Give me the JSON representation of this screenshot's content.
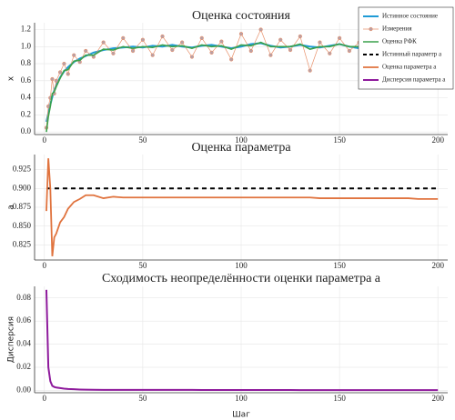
{
  "chart_data": [
    {
      "type": "line",
      "title": "Оценка состояния",
      "ylabel": "x",
      "x": [
        1,
        2,
        3,
        4,
        5,
        6,
        8,
        10,
        12,
        15,
        18,
        21,
        25,
        30,
        35,
        40,
        45,
        50,
        55,
        60,
        65,
        70,
        75,
        80,
        85,
        90,
        95,
        100,
        105,
        110,
        115,
        120,
        125,
        130,
        135,
        140,
        145,
        150,
        155,
        160,
        165,
        170,
        175,
        180,
        185,
        190,
        195,
        200
      ],
      "xlim": [
        -5,
        205
      ],
      "xticks": [
        0,
        50,
        100,
        150,
        200
      ],
      "ylim": [
        -0.03,
        1.28
      ],
      "yticks": [
        {
          "value": 0,
          "label": "0.0"
        },
        0.2,
        0.4,
        0.6,
        0.8,
        {
          "value": 1,
          "label": "1.0"
        },
        1.2
      ],
      "grid": true,
      "legend": "top-right",
      "series": [
        {
          "name": "Истинное состояние",
          "color": "#1f9bd6",
          "width": 2,
          "values": [
            0.12,
            0.22,
            0.32,
            0.41,
            0.49,
            0.55,
            0.64,
            0.71,
            0.76,
            0.82,
            0.86,
            0.89,
            0.93,
            0.96,
            0.98,
            0.99,
            1.0,
            0.99,
            1.01,
            1.0,
            1.02,
            1.0,
            0.99,
            1.01,
            1.02,
            1.0,
            0.98,
            1.0,
            1.03,
            1.04,
            1.01,
            0.99,
            1.0,
            1.02,
            1.0,
            0.99,
            1.01,
            1.03,
            1.0,
            0.98,
            1.0,
            1.01,
            1.03,
            1.02,
            1.0,
            0.99,
            1.01,
            1.0
          ]
        },
        {
          "name": "Измерения",
          "color": "#e8916b",
          "width": 0.7,
          "marker": true,
          "values": [
            0.05,
            0.3,
            0.4,
            0.62,
            0.45,
            0.6,
            0.7,
            0.8,
            0.68,
            0.9,
            0.82,
            0.95,
            0.88,
            1.05,
            0.92,
            1.1,
            0.95,
            1.08,
            0.9,
            1.12,
            0.96,
            1.05,
            0.88,
            1.1,
            0.93,
            1.06,
            0.85,
            1.15,
            0.95,
            1.2,
            0.9,
            1.08,
            0.96,
            1.12,
            0.72,
            1.05,
            0.92,
            1.1,
            0.95,
            1.05,
            0.88,
            1.15,
            0.94,
            1.08,
            0.96,
            1.1,
            0.98,
            1.02
          ]
        },
        {
          "name": "Оценка РФК",
          "color": "#3aa14b",
          "width": 1.6,
          "values": [
            0.0,
            0.18,
            0.3,
            0.45,
            0.47,
            0.53,
            0.63,
            0.72,
            0.73,
            0.83,
            0.84,
            0.9,
            0.9,
            0.97,
            0.96,
            1.0,
            0.98,
            1.0,
            0.99,
            1.02,
            1.0,
            1.01,
            0.98,
            1.02,
            1.0,
            1.01,
            0.97,
            1.02,
            1.01,
            1.05,
            1.0,
            1.0,
            1.0,
            1.03,
            0.97,
            1.0,
            1.0,
            1.03,
            1.0,
            1.0,
            0.98,
            1.03,
            1.01,
            1.02,
            1.0,
            1.01,
            1.0,
            1.0
          ]
        }
      ]
    },
    {
      "type": "line",
      "title": "Оценка параметра",
      "ylabel": "a",
      "x": [
        1,
        2,
        3,
        4,
        5,
        6,
        8,
        10,
        12,
        15,
        18,
        21,
        25,
        30,
        35,
        40,
        45,
        50,
        55,
        60,
        65,
        70,
        75,
        80,
        85,
        90,
        95,
        100,
        105,
        110,
        115,
        120,
        125,
        130,
        135,
        140,
        145,
        150,
        155,
        160,
        165,
        170,
        175,
        180,
        185,
        190,
        195,
        200
      ],
      "xlim": [
        -5,
        205
      ],
      "xticks": [
        0,
        50,
        100,
        150,
        200
      ],
      "ylim": [
        0.805,
        0.945
      ],
      "yticks": [
        0.825,
        {
          "value": 0.85,
          "label": "0.850"
        },
        0.875,
        {
          "value": 0.9,
          "label": "0.900"
        },
        0.925
      ],
      "grid": true,
      "series": [
        {
          "name": "Истинный параметр a",
          "color": "#000000",
          "width": 2,
          "dash": true,
          "values": [
            0.9,
            0.9,
            0.9,
            0.9,
            0.9,
            0.9,
            0.9,
            0.9,
            0.9,
            0.9,
            0.9,
            0.9,
            0.9,
            0.9,
            0.9,
            0.9,
            0.9,
            0.9,
            0.9,
            0.9,
            0.9,
            0.9,
            0.9,
            0.9,
            0.9,
            0.9,
            0.9,
            0.9,
            0.9,
            0.9,
            0.9,
            0.9,
            0.9,
            0.9,
            0.9,
            0.9,
            0.9,
            0.9,
            0.9,
            0.9,
            0.9,
            0.9,
            0.9,
            0.9,
            0.9,
            0.9,
            0.9,
            0.9
          ]
        },
        {
          "name": "Оценка параметра a",
          "color": "#e0733e",
          "width": 1.8,
          "values": [
            0.87,
            0.94,
            0.9,
            0.81,
            0.835,
            0.84,
            0.855,
            0.862,
            0.873,
            0.882,
            0.886,
            0.891,
            0.891,
            0.887,
            0.889,
            0.888,
            0.888,
            0.888,
            0.888,
            0.888,
            0.888,
            0.888,
            0.888,
            0.888,
            0.888,
            0.888,
            0.888,
            0.888,
            0.888,
            0.888,
            0.888,
            0.888,
            0.888,
            0.888,
            0.888,
            0.887,
            0.887,
            0.887,
            0.887,
            0.887,
            0.887,
            0.887,
            0.887,
            0.887,
            0.887,
            0.886,
            0.886,
            0.886
          ]
        }
      ]
    },
    {
      "type": "line",
      "title": "Сходимость неопределённости оценки параметра a",
      "ylabel": "Дисперсия",
      "xlabel": "Шаг",
      "x": [
        1,
        2,
        3,
        4,
        5,
        6,
        8,
        10,
        12,
        15,
        18,
        21,
        25,
        30,
        35,
        40,
        45,
        50,
        55,
        60,
        65,
        70,
        75,
        80,
        85,
        90,
        95,
        100,
        105,
        110,
        115,
        120,
        125,
        130,
        135,
        140,
        145,
        150,
        155,
        160,
        165,
        170,
        175,
        180,
        185,
        190,
        195,
        200
      ],
      "xlim": [
        -5,
        205
      ],
      "xticks": [
        0,
        50,
        100,
        150,
        200
      ],
      "ylim": [
        -0.002,
        0.09
      ],
      "yticks": [
        {
          "value": 0,
          "label": "0.00"
        },
        0.02,
        0.04,
        0.06,
        0.08
      ],
      "grid": true,
      "series": [
        {
          "name": "Дисперсия параметра a",
          "color": "#8e1a9c",
          "width": 2,
          "values": [
            0.087,
            0.02,
            0.008,
            0.004,
            0.003,
            0.0025,
            0.002,
            0.0015,
            0.0012,
            0.001,
            0.0008,
            0.0007,
            0.0006,
            0.0005,
            0.0005,
            0.0005,
            0.0005,
            0.0005,
            0.0005,
            0.0005,
            0.0005,
            0.0005,
            0.0005,
            0.0004,
            0.0004,
            0.0004,
            0.0004,
            0.0004,
            0.0004,
            0.0004,
            0.0004,
            0.0004,
            0.0004,
            0.0003,
            0.0003,
            0.0003,
            0.0003,
            0.0003,
            0.0003,
            0.0003,
            0.0003,
            0.0003,
            0.0003,
            0.0003,
            0.0003,
            0.0003,
            0.0003,
            0.0003
          ]
        }
      ]
    }
  ]
}
